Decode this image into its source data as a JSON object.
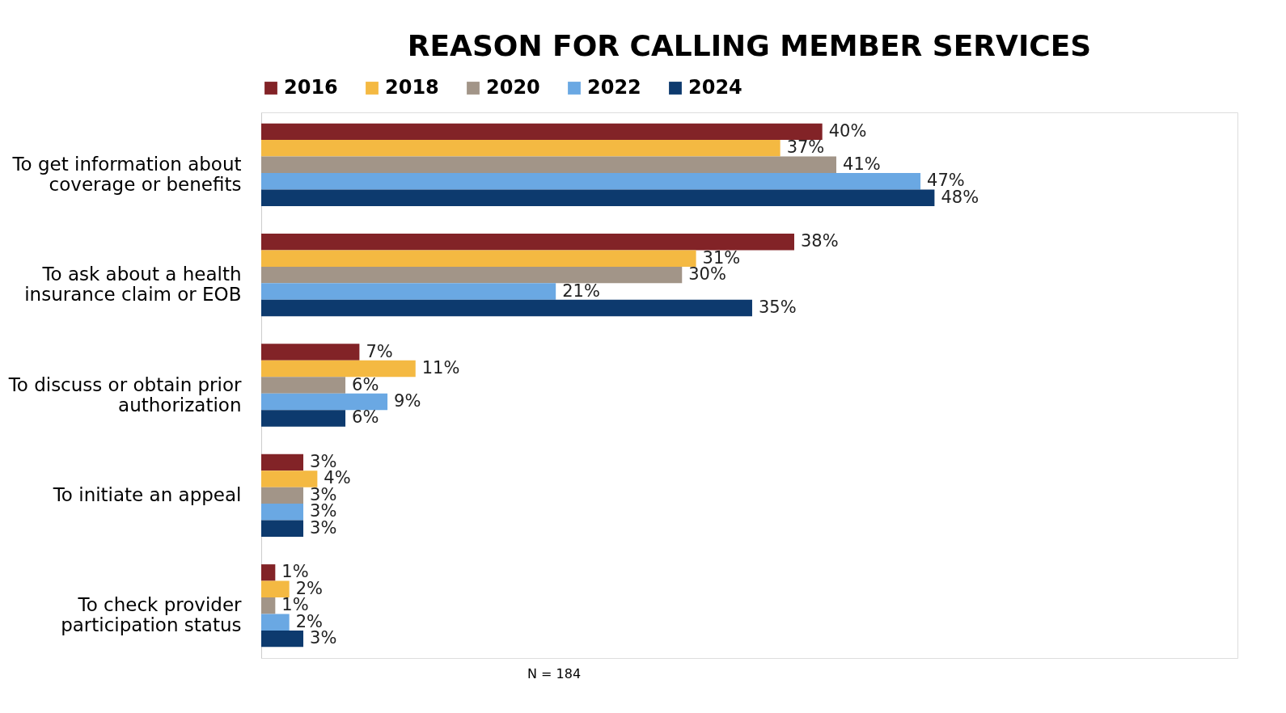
{
  "chart_data": {
    "type": "bar",
    "orientation": "horizontal",
    "title": "REASON FOR CALLING MEMBER SERVICES",
    "categories": [
      "To get information about coverage or benefits",
      "To ask about a health insurance claim or EOB",
      "To discuss or obtain prior authorization",
      "To initiate an appeal",
      "To check provider participation status"
    ],
    "series": [
      {
        "name": "2016",
        "color": "#822327",
        "values": [
          40,
          38,
          7,
          3,
          1
        ],
        "value_labels": [
          "40%",
          "38%",
          "7%",
          "3%",
          "1%"
        ]
      },
      {
        "name": "2018",
        "color": "#f4b942",
        "values": [
          37,
          31,
          11,
          4,
          2
        ],
        "value_labels": [
          "37%",
          "31%",
          "11%",
          "4%",
          "2%"
        ]
      },
      {
        "name": "2020",
        "color": "#a29588",
        "values": [
          41,
          30,
          6,
          3,
          1
        ],
        "value_labels": [
          "41%",
          "30%",
          "6%",
          "3%",
          "1%"
        ]
      },
      {
        "name": "2022",
        "color": "#6aa8e3",
        "values": [
          47,
          21,
          9,
          3,
          2
        ],
        "value_labels": [
          "47%",
          "21%",
          "9%",
          "3%",
          "2%"
        ]
      },
      {
        "name": "2024",
        "color": "#0d3a6e",
        "values": [
          48,
          35,
          6,
          3,
          3
        ],
        "value_labels": [
          "48%",
          "35%",
          "6%",
          "3%",
          "3%"
        ]
      }
    ],
    "legend": "top",
    "grid": false,
    "annotations": [
      "N = 184"
    ]
  }
}
